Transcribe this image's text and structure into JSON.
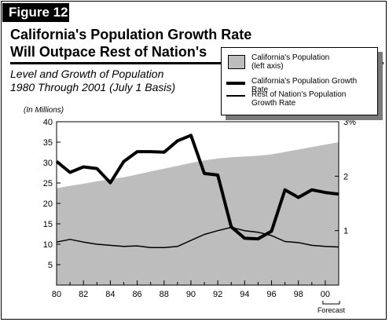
{
  "figure_label": "Figure 12",
  "title_line1": "California's Population Growth Rate",
  "title_line2": "Will Outpace Rest of Nation's",
  "subtitle_line1": "Level and Growth of Population",
  "subtitle_line2": "1980 Through 2001 (July 1 Basis)",
  "chart_data": {
    "type": "line",
    "left_axis_unit": "(In Millions)",
    "left_ylim": [
      0,
      40
    ],
    "left_ticks": [
      "5",
      "10",
      "15",
      "20",
      "25",
      "30",
      "35",
      "40"
    ],
    "right_ylim": [
      0,
      3
    ],
    "right_ticks": [
      "1",
      "2",
      "3%"
    ],
    "x_ticks": [
      "80",
      "82",
      "84",
      "86",
      "88",
      "90",
      "92",
      "94",
      "96",
      "98",
      "00"
    ],
    "x_years": [
      1980,
      1981,
      1982,
      1983,
      1984,
      1985,
      1986,
      1987,
      1988,
      1989,
      1990,
      1991,
      1992,
      1993,
      1994,
      1995,
      1996,
      1997,
      1998,
      1999,
      2000,
      2001
    ],
    "forecast_label": "Forecast",
    "forecast_start_year": 2000,
    "series": [
      {
        "name": "California's Population",
        "name_line2": "(left axis)",
        "kind": "area",
        "axis": "left",
        "values": [
          23.7,
          24.3,
          24.8,
          25.4,
          25.9,
          26.4,
          27.1,
          27.8,
          28.5,
          29.2,
          29.9,
          30.5,
          31.0,
          31.3,
          31.5,
          31.7,
          32.0,
          32.6,
          33.2,
          33.8,
          34.4,
          35.0
        ]
      },
      {
        "name": "California's Population Growth Rate",
        "kind": "thick-line",
        "axis": "right",
        "values": [
          2.27,
          2.07,
          2.17,
          2.14,
          1.88,
          2.27,
          2.45,
          2.45,
          2.44,
          2.65,
          2.75,
          2.05,
          2.02,
          1.07,
          0.86,
          0.85,
          0.99,
          1.75,
          1.61,
          1.75,
          1.7,
          1.67
        ]
      },
      {
        "name": "Rest of Nation's Population",
        "name_line2": "Growth Rate",
        "kind": "thin-line",
        "axis": "right",
        "values": [
          0.79,
          0.84,
          0.79,
          0.75,
          0.73,
          0.71,
          0.72,
          0.69,
          0.69,
          0.71,
          0.82,
          0.93,
          1.0,
          1.06,
          1.0,
          0.97,
          0.91,
          0.8,
          0.78,
          0.73,
          0.71,
          0.7
        ]
      }
    ],
    "colors": {
      "area": "#bdbdbd",
      "line": "#000000"
    },
    "grid": false,
    "legend_position": "top-right"
  }
}
